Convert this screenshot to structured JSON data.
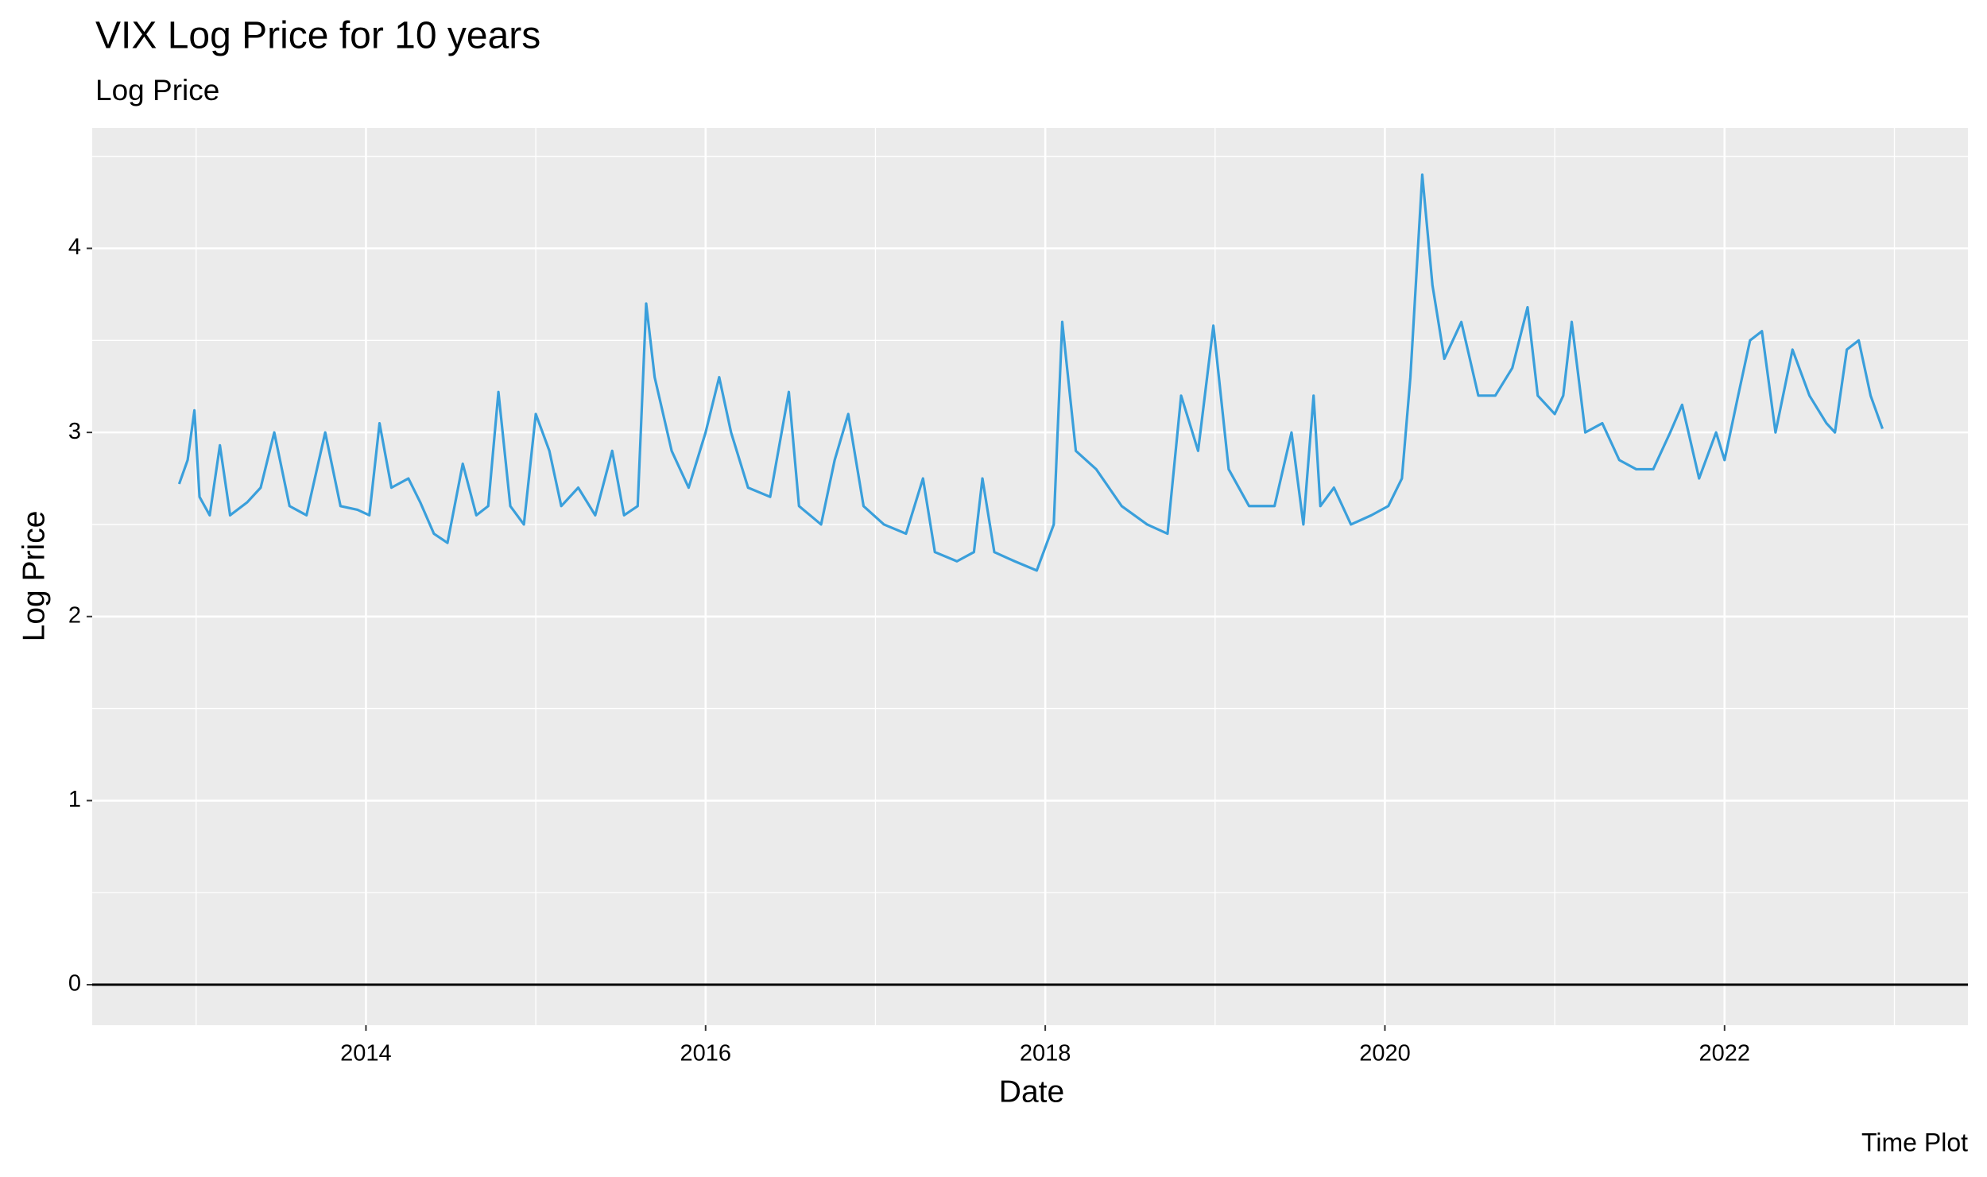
{
  "chart_data": {
    "type": "line",
    "title": "VIX Log Price for 10 years",
    "subtitle": "Log Price",
    "x_label": "Date",
    "y_label": "Log Price",
    "caption": "Time Plot",
    "x": [
      2012.9,
      2012.95,
      2012.99,
      2013.02,
      2013.08,
      2013.14,
      2013.2,
      2013.3,
      2013.38,
      2013.46,
      2013.55,
      2013.65,
      2013.76,
      2013.85,
      2013.95,
      2014.02,
      2014.08,
      2014.15,
      2014.25,
      2014.32,
      2014.4,
      2014.48,
      2014.57,
      2014.65,
      2014.72,
      2014.78,
      2014.85,
      2014.93,
      2015.0,
      2015.08,
      2015.15,
      2015.25,
      2015.35,
      2015.45,
      2015.52,
      2015.6,
      2015.65,
      2015.7,
      2015.8,
      2015.9,
      2016.0,
      2016.08,
      2016.15,
      2016.25,
      2016.38,
      2016.49,
      2016.55,
      2016.68,
      2016.76,
      2016.84,
      2016.93,
      2017.05,
      2017.18,
      2017.28,
      2017.35,
      2017.48,
      2017.58,
      2017.63,
      2017.7,
      2017.82,
      2017.95,
      2018.05,
      2018.1,
      2018.18,
      2018.3,
      2018.45,
      2018.6,
      2018.72,
      2018.8,
      2018.9,
      2018.99,
      2019.08,
      2019.2,
      2019.35,
      2019.45,
      2019.52,
      2019.58,
      2019.62,
      2019.7,
      2019.8,
      2019.92,
      2020.02,
      2020.1,
      2020.15,
      2020.22,
      2020.28,
      2020.35,
      2020.45,
      2020.55,
      2020.65,
      2020.75,
      2020.84,
      2020.9,
      2021.0,
      2021.05,
      2021.1,
      2021.18,
      2021.28,
      2021.38,
      2021.48,
      2021.58,
      2021.68,
      2021.75,
      2021.85,
      2021.95,
      2022.0,
      2022.08,
      2022.15,
      2022.22,
      2022.3,
      2022.4,
      2022.5,
      2022.6,
      2022.65,
      2022.72,
      2022.79,
      2022.86,
      2022.93
    ],
    "series": [
      {
        "name": "VIX",
        "color": "#3A9FDB",
        "values": [
          2.72,
          2.85,
          3.12,
          2.65,
          2.55,
          2.93,
          2.55,
          2.62,
          2.7,
          3.0,
          2.6,
          2.55,
          3.0,
          2.6,
          2.58,
          2.55,
          3.05,
          2.7,
          2.75,
          2.62,
          2.45,
          2.4,
          2.83,
          2.55,
          2.6,
          3.22,
          2.6,
          2.5,
          3.1,
          2.9,
          2.6,
          2.7,
          2.55,
          2.9,
          2.55,
          2.6,
          3.7,
          3.3,
          2.9,
          2.7,
          3.0,
          3.3,
          3.0,
          2.7,
          2.65,
          3.22,
          2.6,
          2.5,
          2.85,
          3.1,
          2.6,
          2.5,
          2.45,
          2.75,
          2.35,
          2.3,
          2.35,
          2.75,
          2.35,
          2.3,
          2.25,
          2.5,
          3.6,
          2.9,
          2.8,
          2.6,
          2.5,
          2.45,
          3.2,
          2.9,
          3.58,
          2.8,
          2.6,
          2.6,
          3.0,
          2.5,
          3.2,
          2.6,
          2.7,
          2.5,
          2.55,
          2.6,
          2.75,
          3.3,
          4.4,
          3.8,
          3.4,
          3.6,
          3.2,
          3.2,
          3.35,
          3.68,
          3.2,
          3.1,
          3.2,
          3.6,
          3.0,
          3.05,
          2.85,
          2.8,
          2.8,
          3.0,
          3.15,
          2.75,
          3.0,
          2.85,
          3.2,
          3.5,
          3.55,
          3.0,
          3.45,
          3.2,
          3.05,
          3.0,
          3.45,
          3.5,
          3.2,
          3.02
        ]
      }
    ],
    "hline": 0,
    "xlim": [
      2012.388,
      2023.433
    ],
    "ylim": [
      -0.22,
      4.654
    ],
    "xticks": [
      2014,
      2016,
      2018,
      2020,
      2022
    ],
    "yticks": [
      0,
      1,
      2,
      3,
      4
    ],
    "grid": true
  }
}
